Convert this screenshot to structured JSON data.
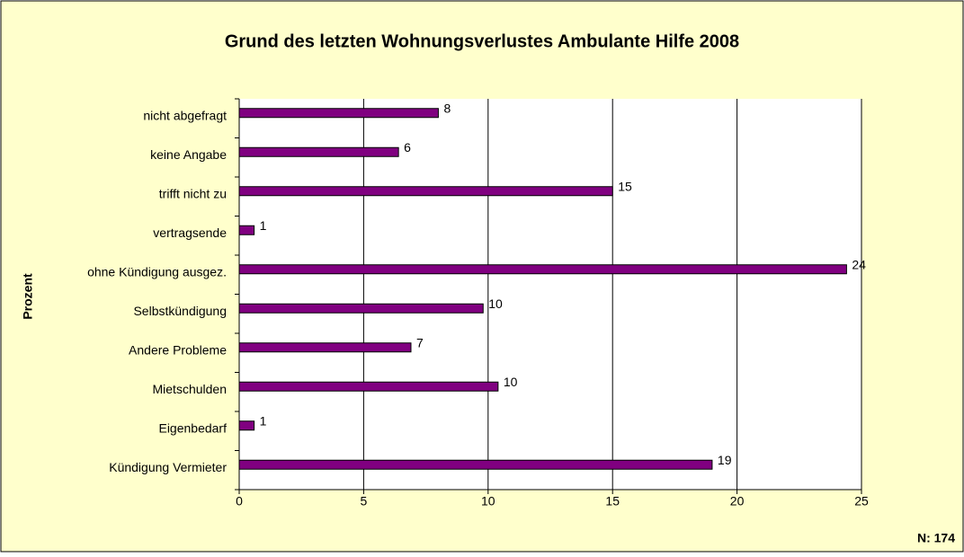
{
  "chart_data": {
    "type": "bar",
    "orientation": "horizontal",
    "title": "Grund des letzten Wohnungsverlustes Ambulante Hilfe 2008",
    "y_label": "Prozent",
    "annotation": "N: 174",
    "categories": [
      "nicht abgefragt",
      "keine Angabe",
      "trifft nicht zu",
      "vertragsende",
      "ohne Kündigung ausgez.",
      "Selbstkündigung",
      "Andere Probleme",
      "Mietschulden",
      "Eigenbedarf",
      "Kündigung Vermieter"
    ],
    "values": [
      8.0,
      6.4,
      15.0,
      0.6,
      24.4,
      9.8,
      6.9,
      10.4,
      0.6,
      19.0
    ],
    "value_labels": [
      "8",
      "6",
      "15",
      "1",
      "24",
      "10",
      "7",
      "10",
      "1",
      "19"
    ],
    "color": "#800080",
    "xlim": [
      0,
      25
    ],
    "xticks": [
      0,
      5,
      10,
      15,
      20,
      25
    ],
    "grid": true
  }
}
